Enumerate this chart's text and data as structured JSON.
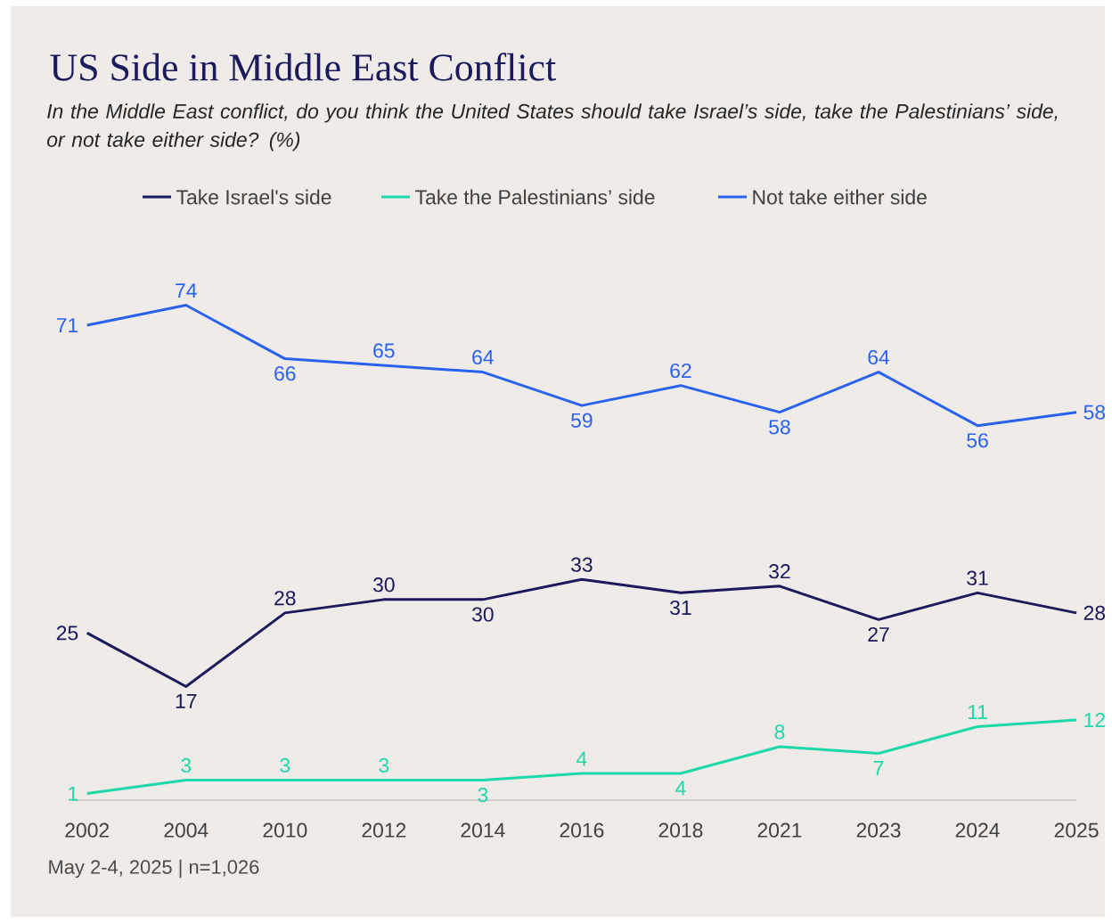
{
  "chart_data": {
    "type": "line",
    "title": "US Side in Middle East Conflict",
    "subtitle": "In the Middle East conflict, do you think the United States should take Israel’s side, take the Palestinians’ side, or not take either side? (%)",
    "categories": [
      "2002",
      "2004",
      "2010",
      "2012",
      "2014",
      "2016",
      "2018",
      "2021",
      "2023",
      "2024",
      "2025"
    ],
    "series": [
      {
        "name": "Take Israel's side",
        "color": "#1b1a5c",
        "values": [
          25,
          17,
          28,
          30,
          30,
          33,
          31,
          32,
          27,
          31,
          28
        ]
      },
      {
        "name": "Take the Palestinians’ side",
        "color": "#1ed8a8",
        "values": [
          1,
          3,
          3,
          3,
          3,
          4,
          4,
          8,
          7,
          11,
          12
        ]
      },
      {
        "name": "Not take either side",
        "color": "#2a62f0",
        "values": [
          71,
          74,
          66,
          65,
          64,
          59,
          62,
          58,
          64,
          56,
          58
        ]
      }
    ],
    "data_labels": true,
    "legend": "top",
    "grid": false,
    "marker": "none",
    "line_style": "solid",
    "annotations": [
      "May 2-4, 2025 | n=1,026"
    ]
  }
}
